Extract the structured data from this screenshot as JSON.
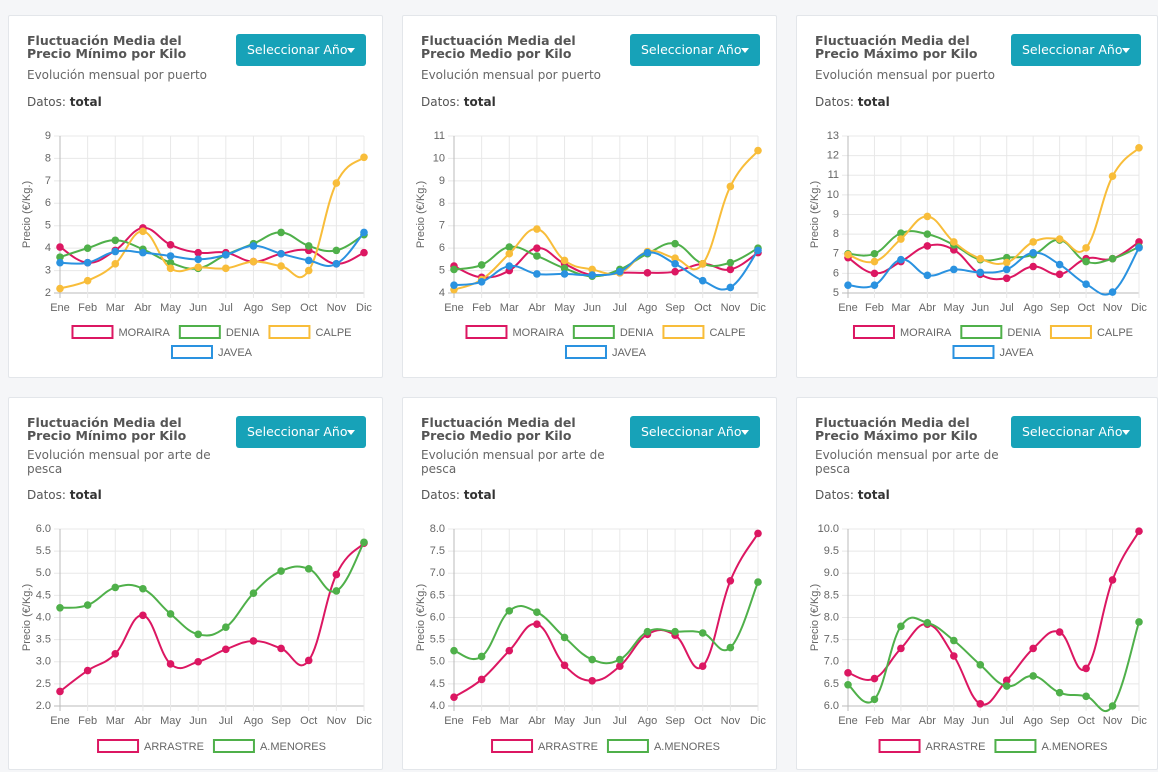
{
  "chart_data": [
    {
      "type": "line",
      "title": "Fluctuación Media del Precio Mínimo por Kilo",
      "subtitle": "Evolución mensual por puerto",
      "button": "Seleccionar Año",
      "data_label": "Datos:",
      "data_value": "total",
      "y_label": "Precio (€/Kg.)",
      "categories": [
        "Ene",
        "Feb",
        "Mar",
        "Abr",
        "May",
        "Jun",
        "Jul",
        "Ago",
        "Sep",
        "Oct",
        "Nov",
        "Dic"
      ],
      "series": [
        {
          "name": "MORAIRA",
          "color": "#dc1762",
          "values": [
            4.05,
            3.35,
            3.9,
            4.9,
            4.15,
            3.8,
            3.8,
            3.4,
            3.75,
            3.9,
            3.3,
            3.8
          ]
        },
        {
          "name": "DENIA",
          "color": "#4fb04a",
          "values": [
            3.6,
            4.0,
            4.35,
            3.95,
            3.35,
            3.1,
            3.7,
            4.2,
            4.7,
            4.1,
            3.9,
            4.6
          ]
        },
        {
          "name": "CALPE",
          "color": "#f8bd3a",
          "values": [
            2.2,
            2.55,
            3.3,
            4.75,
            3.1,
            3.15,
            3.1,
            3.4,
            3.2,
            3.0,
            6.9,
            8.05
          ]
        },
        {
          "name": "JAVEA",
          "color": "#2a92e0",
          "values": [
            3.35,
            3.35,
            3.85,
            3.8,
            3.65,
            3.5,
            3.7,
            4.1,
            3.75,
            3.45,
            3.3,
            4.7
          ]
        }
      ],
      "ylim": [
        2,
        9
      ],
      "yticks": [
        2,
        3,
        4,
        5,
        6,
        7,
        8,
        9
      ],
      "grid": true
    },
    {
      "type": "line",
      "title": "Fluctuación Media del Precio Medio por Kilo",
      "subtitle": "Evolución mensual por puerto",
      "button": "Seleccionar Año",
      "data_label": "Datos:",
      "data_value": "total",
      "y_label": "Precio (€/Kg.)",
      "categories": [
        "Ene",
        "Feb",
        "Mar",
        "Abr",
        "May",
        "Jun",
        "Jul",
        "Ago",
        "Sep",
        "Oct",
        "Nov",
        "Dic"
      ],
      "series": [
        {
          "name": "MORAIRA",
          "color": "#dc1762",
          "values": [
            5.2,
            4.7,
            5.0,
            6.0,
            5.3,
            4.8,
            4.9,
            4.9,
            4.95,
            5.3,
            5.05,
            5.8
          ]
        },
        {
          "name": "DENIA",
          "color": "#4fb04a",
          "values": [
            5.05,
            5.25,
            6.05,
            5.65,
            5.1,
            4.75,
            5.05,
            5.75,
            6.2,
            5.3,
            5.35,
            6.0
          ]
        },
        {
          "name": "CALPE",
          "color": "#f8bd3a",
          "values": [
            4.15,
            4.6,
            5.75,
            6.85,
            5.45,
            5.05,
            4.9,
            5.85,
            5.55,
            5.3,
            8.75,
            10.35
          ]
        },
        {
          "name": "JAVEA",
          "color": "#2a92e0",
          "values": [
            4.35,
            4.5,
            5.2,
            4.85,
            4.85,
            4.8,
            4.95,
            5.8,
            5.3,
            4.55,
            4.25,
            5.9
          ]
        }
      ],
      "ylim": [
        4,
        11
      ],
      "yticks": [
        4,
        5,
        6,
        7,
        8,
        9,
        10,
        11
      ],
      "grid": true
    },
    {
      "type": "line",
      "title": "Fluctuación Media del Precio Máximo por Kilo",
      "subtitle": "Evolución mensual por puerto",
      "button": "Seleccionar Año",
      "data_label": "Datos:",
      "data_value": "total",
      "y_label": "Precio (€/Kg.)",
      "categories": [
        "Ene",
        "Feb",
        "Mar",
        "Abr",
        "May",
        "Jun",
        "Jul",
        "Ago",
        "Sep",
        "Oct",
        "Nov",
        "Dic"
      ],
      "series": [
        {
          "name": "MORAIRA",
          "color": "#dc1762",
          "values": [
            6.8,
            6.0,
            6.6,
            7.4,
            7.2,
            5.95,
            5.75,
            6.35,
            5.95,
            6.75,
            6.75,
            7.6
          ]
        },
        {
          "name": "DENIA",
          "color": "#4fb04a",
          "values": [
            7.0,
            7.0,
            8.05,
            8.0,
            7.45,
            6.7,
            6.8,
            6.95,
            7.7,
            6.6,
            6.75,
            7.35
          ]
        },
        {
          "name": "CALPE",
          "color": "#f8bd3a",
          "values": [
            6.95,
            6.6,
            7.75,
            8.9,
            7.6,
            6.75,
            6.55,
            7.6,
            7.75,
            7.3,
            10.95,
            12.4
          ]
        },
        {
          "name": "JAVEA",
          "color": "#2a92e0",
          "values": [
            5.4,
            5.4,
            6.7,
            5.9,
            6.2,
            6.05,
            6.2,
            7.05,
            6.45,
            5.45,
            5.05,
            7.3
          ]
        }
      ],
      "ylim": [
        5,
        13
      ],
      "yticks": [
        5,
        6,
        7,
        8,
        9,
        10,
        11,
        12,
        13
      ],
      "grid": true
    },
    {
      "type": "line",
      "title": "Fluctuación Media del Precio Mínimo por Kilo",
      "subtitle": "Evolución mensual por arte de pesca",
      "button": "Seleccionar Año",
      "data_label": "Datos:",
      "data_value": "total",
      "y_label": "Precio (€/Kg.)",
      "categories": [
        "Ene",
        "Feb",
        "Mar",
        "Abr",
        "May",
        "Jun",
        "Jul",
        "Ago",
        "Sep",
        "Oct",
        "Nov",
        "Dic"
      ],
      "series": [
        {
          "name": "ARRASTRE",
          "color": "#dc1762",
          "values": [
            2.33,
            2.8,
            3.18,
            4.05,
            2.95,
            3.0,
            3.28,
            3.47,
            3.3,
            3.03,
            4.97,
            5.68
          ]
        },
        {
          "name": "A.MENORES",
          "color": "#4fb04a",
          "values": [
            4.22,
            4.28,
            4.68,
            4.65,
            4.08,
            3.62,
            3.78,
            4.55,
            5.05,
            5.1,
            4.6,
            5.7
          ]
        }
      ],
      "ylim": [
        2,
        6
      ],
      "yticks": [
        {
          "value": 2,
          "label": "2.0"
        },
        2.5,
        {
          "value": 3,
          "label": "3.0"
        },
        3.5,
        {
          "value": 4,
          "label": "4.0"
        },
        4.5,
        {
          "value": 5,
          "label": "5.0"
        },
        5.5,
        {
          "value": 6,
          "label": "6.0"
        }
      ],
      "grid": true
    },
    {
      "type": "line",
      "title": "Fluctuación Media del Precio Medio por Kilo",
      "subtitle": "Evolución mensual por arte de pesca",
      "button": "Seleccionar Año",
      "data_label": "Datos:",
      "data_value": "total",
      "y_label": "Precio (€/Kg.)",
      "categories": [
        "Ene",
        "Feb",
        "Mar",
        "Abr",
        "May",
        "Jun",
        "Jul",
        "Ago",
        "Sep",
        "Oct",
        "Nov",
        "Dic"
      ],
      "series": [
        {
          "name": "ARRASTRE",
          "color": "#dc1762",
          "values": [
            4.2,
            4.6,
            5.25,
            5.85,
            4.92,
            4.57,
            4.9,
            5.62,
            5.6,
            4.9,
            6.83,
            7.9
          ]
        },
        {
          "name": "A.MENORES",
          "color": "#4fb04a",
          "values": [
            5.25,
            5.12,
            6.15,
            6.12,
            5.55,
            5.05,
            5.05,
            5.68,
            5.68,
            5.65,
            5.32,
            6.8
          ]
        }
      ],
      "ylim": [
        4,
        8
      ],
      "yticks": [
        {
          "value": 4,
          "label": "4.0"
        },
        4.5,
        {
          "value": 5,
          "label": "5.0"
        },
        5.5,
        {
          "value": 6,
          "label": "6.0"
        },
        6.5,
        {
          "value": 7,
          "label": "7.0"
        },
        7.5,
        {
          "value": 8,
          "label": "8.0"
        }
      ],
      "grid": true
    },
    {
      "type": "line",
      "title": "Fluctuación Media del Precio Máximo por Kilo",
      "subtitle": "Evolución mensual por arte de pesca",
      "button": "Seleccionar Año",
      "data_label": "Datos:",
      "data_value": "total",
      "y_label": "Precio (€/Kg.)",
      "categories": [
        "Ene",
        "Feb",
        "Mar",
        "Abr",
        "May",
        "Jun",
        "Jul",
        "Ago",
        "Sep",
        "Oct",
        "Nov",
        "Dic"
      ],
      "series": [
        {
          "name": "ARRASTRE",
          "color": "#dc1762",
          "values": [
            6.75,
            6.62,
            7.3,
            7.85,
            7.13,
            6.05,
            6.58,
            7.3,
            7.67,
            6.85,
            8.85,
            9.95
          ]
        },
        {
          "name": "A.MENORES",
          "color": "#4fb04a",
          "values": [
            6.48,
            6.15,
            7.8,
            7.88,
            7.48,
            6.93,
            6.45,
            6.68,
            6.3,
            6.22,
            6.0,
            7.9
          ]
        }
      ],
      "ylim": [
        6,
        10
      ],
      "yticks": [
        {
          "value": 6,
          "label": "6.0"
        },
        6.5,
        {
          "value": 7,
          "label": "7.0"
        },
        7.5,
        {
          "value": 8,
          "label": "8.0"
        },
        8.5,
        {
          "value": 9,
          "label": "9.0"
        },
        9.5,
        {
          "value": 10,
          "label": "10.0"
        }
      ],
      "grid": true
    }
  ]
}
